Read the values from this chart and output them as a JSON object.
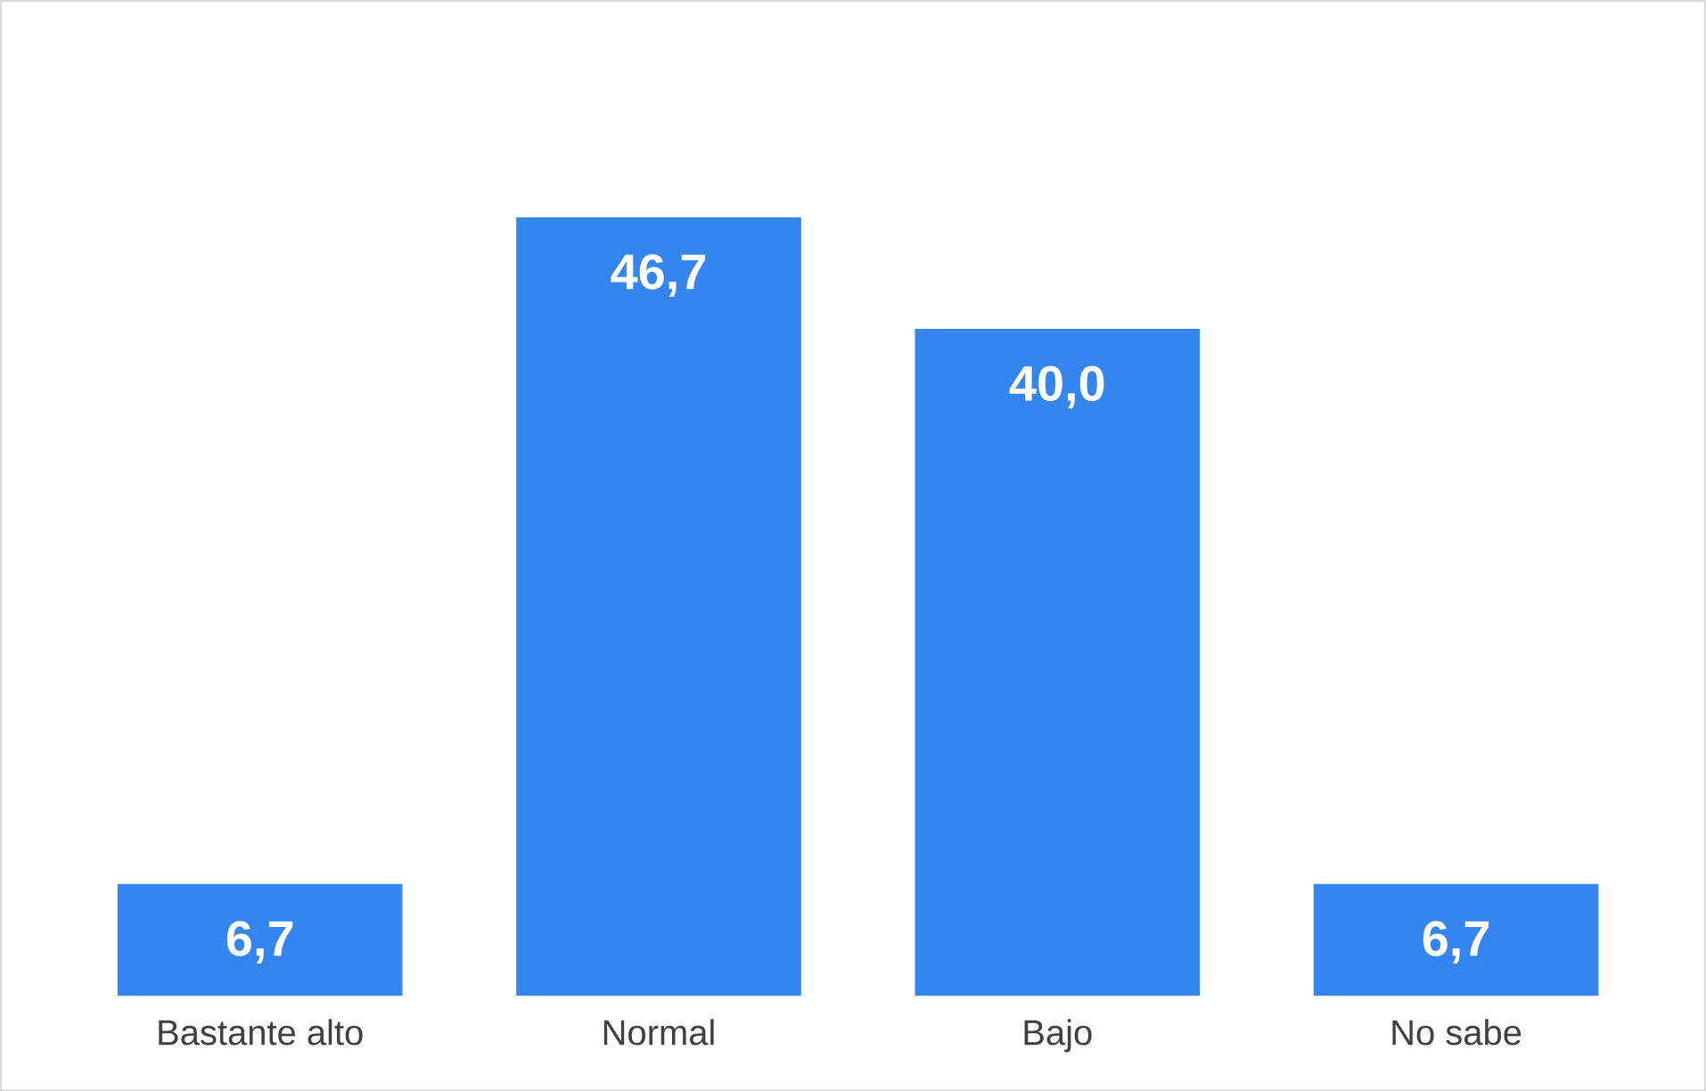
{
  "chart_data": {
    "type": "bar",
    "categories": [
      "Bastante alto",
      "Normal",
      "Bajo",
      "No sabe"
    ],
    "values": [
      6.7,
      46.7,
      40.0,
      6.7
    ],
    "value_labels": [
      "6,7",
      "46,7",
      "40,0",
      "6,7"
    ],
    "color": "#3585f0"
  }
}
